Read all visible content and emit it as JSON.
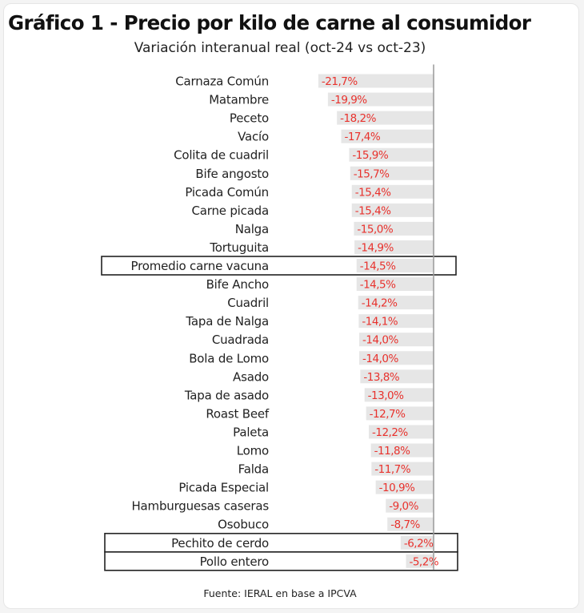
{
  "chart_data": {
    "type": "bar",
    "orientation": "horizontal",
    "title": "Gráfico 1 - Precio por kilo de carne al consumidor",
    "subtitle": "Variación interanual real (oct-24 vs oct-23)",
    "source": "Fuente: IERAL en base a IPCVA",
    "categories": [
      "Carnaza Común",
      "Matambre",
      "Peceto",
      "Vacío",
      "Colita de cuadril",
      "Bife angosto",
      "Picada Común",
      "Carne picada",
      "Nalga",
      "Tortuguita",
      "Promedio carne vacuna",
      "Bife Ancho",
      "Cuadril",
      "Tapa de Nalga",
      "Cuadrada",
      "Bola de Lomo",
      "Asado",
      "Tapa de asado",
      "Roast Beef",
      "Paleta",
      "Lomo",
      "Falda",
      "Picada Especial",
      "Hamburguesas caseras",
      "Osobuco",
      "Pechito de cerdo",
      "Pollo entero"
    ],
    "values": [
      -21.7,
      -19.9,
      -18.2,
      -17.4,
      -15.9,
      -15.7,
      -15.4,
      -15.4,
      -15.0,
      -14.9,
      -14.5,
      -14.5,
      -14.2,
      -14.1,
      -14.0,
      -14.0,
      -13.8,
      -13.0,
      -12.7,
      -12.2,
      -11.8,
      -11.7,
      -10.9,
      -9.0,
      -8.7,
      -6.2,
      -5.2
    ],
    "labels": [
      "-21,7%",
      "-19,9%",
      "-18,2%",
      "-17,4%",
      "-15,9%",
      "-15,7%",
      "-15,4%",
      "-15,4%",
      "-15,0%",
      "-14,9%",
      "-14,5%",
      "-14,5%",
      "-14,2%",
      "-14,1%",
      "-14,0%",
      "-14,0%",
      "-13,8%",
      "-13,0%",
      "-12,7%",
      "-12,2%",
      "-11,8%",
      "-11,7%",
      "-10,9%",
      "-9,0%",
      "-8,7%",
      "-6,2%",
      "-5,2%"
    ],
    "highlighted": [
      "Promedio carne vacuna",
      "Pechito de cerdo",
      "Pollo entero"
    ],
    "xlim": [
      -25,
      0
    ],
    "bar_color": "#e6e6e6",
    "label_color": "#e8322d",
    "axis_color": "#999999"
  }
}
